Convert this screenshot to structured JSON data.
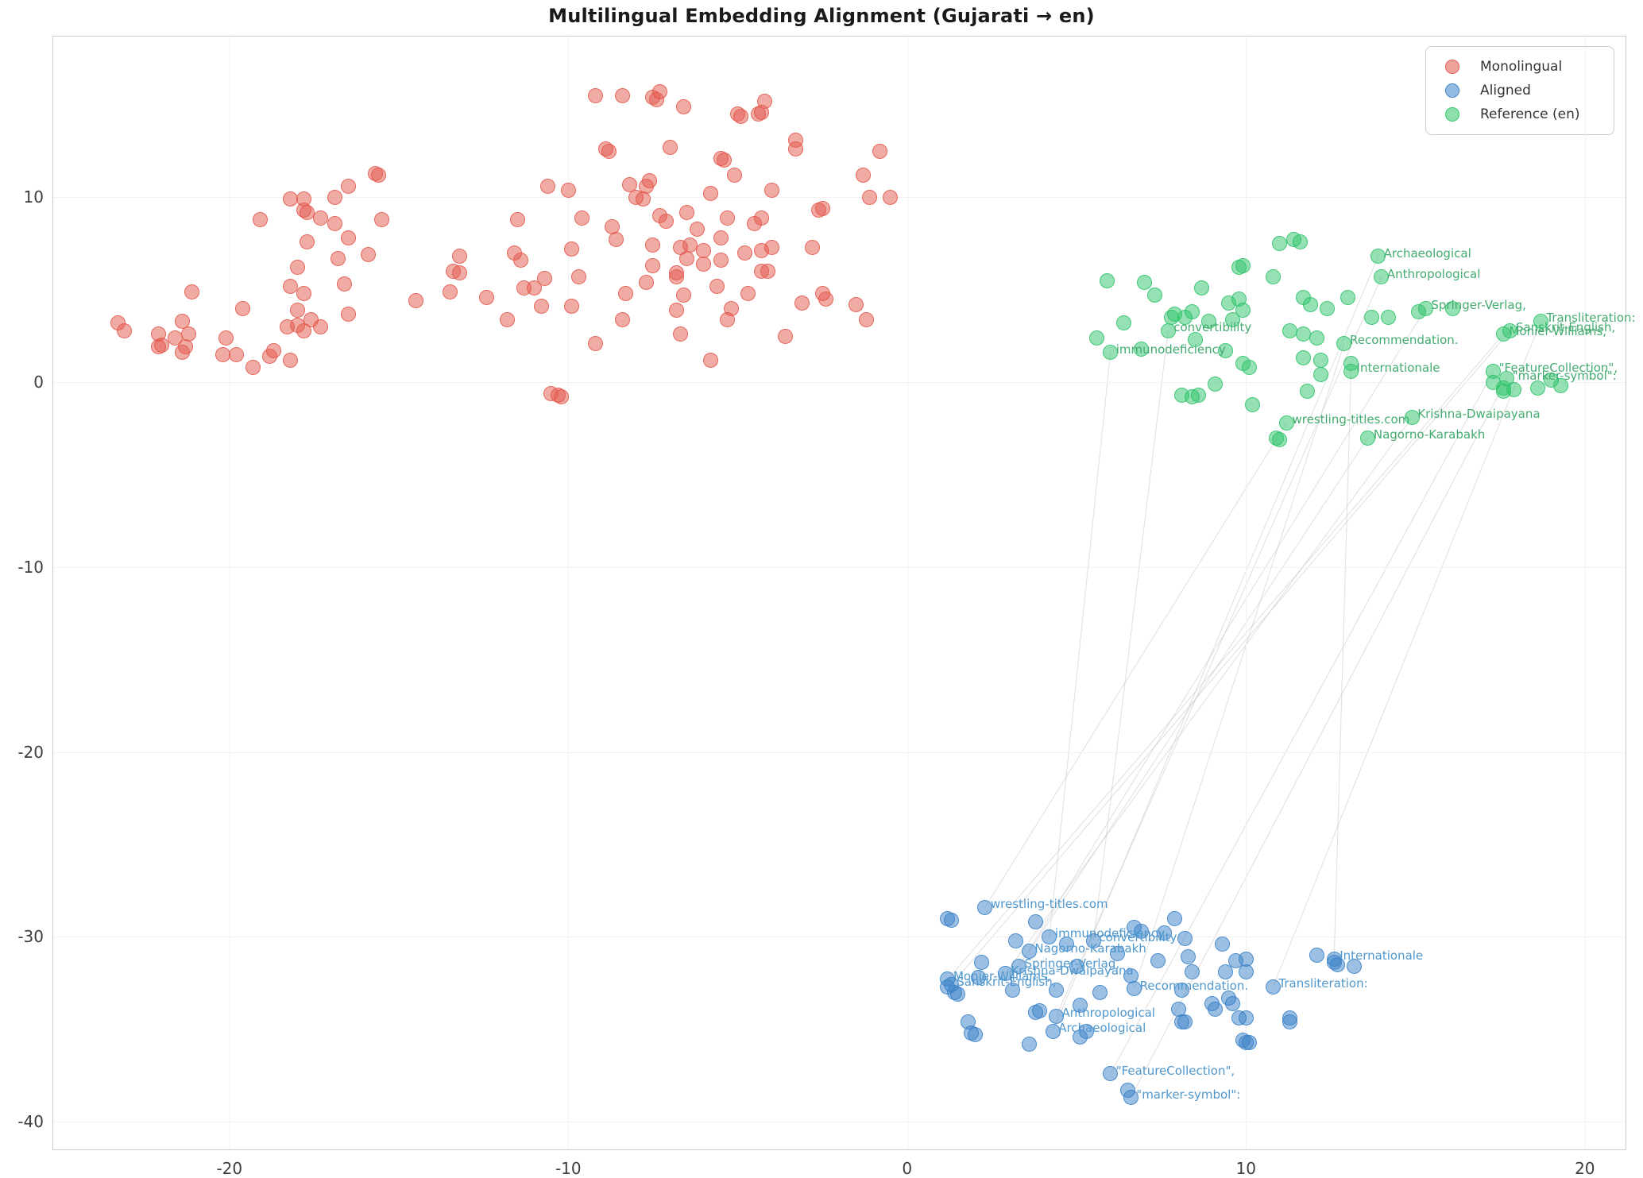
{
  "colors": {
    "monolingual": "#e4584c",
    "aligned": "#3a82c8",
    "reference": "#2ec36a",
    "aligned_label_text": "#4f97cd",
    "reference_label_text": "#44ab70",
    "connector": "#c9c9c9",
    "grid": "#f2f2f2",
    "spine": "#cdcdcd",
    "tick_text": "#3d3d3d"
  },
  "legend": {
    "items": [
      {
        "key": "monolingual",
        "label": "Monolingual"
      },
      {
        "key": "aligned",
        "label": "Aligned"
      },
      {
        "key": "reference",
        "label": "Reference (en)"
      }
    ]
  },
  "chart_data": {
    "type": "scatter",
    "title": "Multilingual Embedding Alignment (Gujarati → en)",
    "xlabel": "",
    "ylabel": "",
    "xlim": [
      -25.2,
      21.2
    ],
    "ylim": [
      -41.5,
      18.7
    ],
    "xticks": [
      -20,
      -10,
      0,
      10,
      20
    ],
    "yticks": [
      10,
      0,
      -10,
      -20,
      -30,
      -40
    ],
    "grid": true,
    "legend_position": "upper right",
    "series": [
      {
        "name": "Monolingual",
        "key": "monolingual",
        "points": [
          [
            -23.3,
            3.2
          ],
          [
            -23.1,
            2.8
          ],
          [
            -22.1,
            2.6
          ],
          [
            -22.1,
            1.9
          ],
          [
            -22.0,
            2.0
          ],
          [
            -21.6,
            2.4
          ],
          [
            -21.4,
            3.3
          ],
          [
            -21.4,
            1.6
          ],
          [
            -21.2,
            2.6
          ],
          [
            -21.3,
            1.9
          ],
          [
            -21.1,
            4.9
          ],
          [
            -20.2,
            1.5
          ],
          [
            -20.1,
            2.4
          ],
          [
            -19.8,
            1.5
          ],
          [
            -19.6,
            4.0
          ],
          [
            -19.3,
            0.8
          ],
          [
            -19.1,
            8.8
          ],
          [
            -18.8,
            1.4
          ],
          [
            -18.7,
            1.7
          ],
          [
            -18.2,
            9.9
          ],
          [
            -18.2,
            5.2
          ],
          [
            -18.3,
            3.0
          ],
          [
            -18.2,
            1.2
          ],
          [
            -18.0,
            3.1
          ],
          [
            -18.0,
            6.2
          ],
          [
            -18.0,
            3.9
          ],
          [
            -17.8,
            2.8
          ],
          [
            -17.8,
            4.8
          ],
          [
            -17.8,
            9.9
          ],
          [
            -17.7,
            9.2
          ],
          [
            -17.8,
            9.3
          ],
          [
            -17.7,
            7.6
          ],
          [
            -17.6,
            3.4
          ],
          [
            -17.3,
            3.0
          ],
          [
            -17.3,
            8.9
          ],
          [
            -16.9,
            10.0
          ],
          [
            -16.9,
            8.6
          ],
          [
            -16.8,
            6.7
          ],
          [
            -16.6,
            5.3
          ],
          [
            -16.5,
            10.6
          ],
          [
            -16.5,
            7.8
          ],
          [
            -16.5,
            3.7
          ],
          [
            -15.9,
            6.9
          ],
          [
            -15.6,
            11.2
          ],
          [
            -15.7,
            11.3
          ],
          [
            -15.5,
            8.8
          ],
          [
            -14.5,
            4.4
          ],
          [
            -13.4,
            6.0
          ],
          [
            -13.2,
            6.8
          ],
          [
            -9.2,
            15.5
          ],
          [
            -8.4,
            15.5
          ],
          [
            -7.4,
            15.3
          ],
          [
            -7.5,
            15.4
          ],
          [
            -7.3,
            15.7
          ],
          [
            -6.6,
            14.9
          ],
          [
            -5.0,
            14.5
          ],
          [
            -4.3,
            14.6
          ],
          [
            -4.4,
            14.5
          ],
          [
            -4.2,
            15.2
          ],
          [
            -4.9,
            14.4
          ],
          [
            -3.3,
            13.1
          ],
          [
            -8.8,
            12.5
          ],
          [
            -8.9,
            12.6
          ],
          [
            -7.0,
            12.7
          ],
          [
            -5.4,
            12.0
          ],
          [
            -5.5,
            12.1
          ],
          [
            -5.1,
            11.2
          ],
          [
            -3.3,
            12.6
          ],
          [
            -0.8,
            12.5
          ],
          [
            -1.3,
            11.2
          ],
          [
            -10.6,
            10.6
          ],
          [
            -10.0,
            10.4
          ],
          [
            -8.2,
            10.7
          ],
          [
            -7.7,
            10.6
          ],
          [
            -7.6,
            10.9
          ],
          [
            -8.0,
            10.0
          ],
          [
            -7.8,
            9.9
          ],
          [
            -5.8,
            10.2
          ],
          [
            -4.0,
            10.4
          ],
          [
            -2.6,
            9.3
          ],
          [
            -2.5,
            9.4
          ],
          [
            -1.1,
            10.0
          ],
          [
            -0.5,
            10.0
          ],
          [
            -11.5,
            8.8
          ],
          [
            -9.6,
            8.9
          ],
          [
            -8.7,
            8.4
          ],
          [
            -7.3,
            9.0
          ],
          [
            -7.1,
            8.7
          ],
          [
            -6.5,
            9.2
          ],
          [
            -5.3,
            8.9
          ],
          [
            -4.5,
            8.6
          ],
          [
            -4.3,
            8.9
          ],
          [
            -6.2,
            8.3
          ],
          [
            -5.5,
            7.8
          ],
          [
            -8.6,
            7.7
          ],
          [
            -9.9,
            7.2
          ],
          [
            -11.6,
            7.0
          ],
          [
            -11.4,
            6.6
          ],
          [
            -7.5,
            7.4
          ],
          [
            -6.7,
            7.3
          ],
          [
            -6.4,
            7.4
          ],
          [
            -6.0,
            7.1
          ],
          [
            -6.5,
            6.7
          ],
          [
            -6.0,
            6.4
          ],
          [
            -5.5,
            6.6
          ],
          [
            -4.8,
            7.0
          ],
          [
            -4.3,
            7.1
          ],
          [
            -4.0,
            7.3
          ],
          [
            -2.8,
            7.3
          ],
          [
            -4.1,
            6.0
          ],
          [
            -4.3,
            6.0
          ],
          [
            -13.2,
            5.9
          ],
          [
            -13.5,
            4.9
          ],
          [
            -12.4,
            4.6
          ],
          [
            -11.3,
            5.1
          ],
          [
            -11.0,
            5.1
          ],
          [
            -10.7,
            5.6
          ],
          [
            -9.7,
            5.7
          ],
          [
            -10.8,
            4.1
          ],
          [
            -9.9,
            4.1
          ],
          [
            -11.8,
            3.4
          ],
          [
            -8.4,
            3.4
          ],
          [
            -8.3,
            4.8
          ],
          [
            -7.7,
            5.4
          ],
          [
            -7.5,
            6.3
          ],
          [
            -6.8,
            5.7
          ],
          [
            -6.8,
            5.9
          ],
          [
            -6.6,
            4.7
          ],
          [
            -6.8,
            3.9
          ],
          [
            -5.6,
            5.2
          ],
          [
            -5.2,
            4.0
          ],
          [
            -5.3,
            3.4
          ],
          [
            -4.7,
            4.8
          ],
          [
            -3.1,
            4.3
          ],
          [
            -2.5,
            4.8
          ],
          [
            -2.4,
            4.5
          ],
          [
            -1.5,
            4.2
          ],
          [
            -1.2,
            3.4
          ],
          [
            -3.6,
            2.5
          ],
          [
            -6.7,
            2.6
          ],
          [
            -9.2,
            2.1
          ],
          [
            -5.8,
            1.2
          ],
          [
            -10.5,
            -0.6
          ],
          [
            -10.3,
            -0.7
          ],
          [
            -10.2,
            -0.8
          ]
        ]
      },
      {
        "name": "Aligned",
        "key": "aligned",
        "points": [
          [
            1.2,
            -29.0
          ],
          [
            1.3,
            -29.1
          ],
          [
            3.8,
            -29.2
          ],
          [
            3.2,
            -30.2
          ],
          [
            4.7,
            -30.4
          ],
          [
            6.7,
            -29.5
          ],
          [
            6.9,
            -29.7
          ],
          [
            7.6,
            -29.8
          ],
          [
            7.9,
            -29.0
          ],
          [
            8.2,
            -30.1
          ],
          [
            9.3,
            -30.4
          ],
          [
            10.0,
            -31.2
          ],
          [
            9.7,
            -31.3
          ],
          [
            8.3,
            -31.1
          ],
          [
            9.4,
            -31.9
          ],
          [
            8.4,
            -31.9
          ],
          [
            7.4,
            -31.3
          ],
          [
            6.2,
            -30.9
          ],
          [
            5.0,
            -31.6
          ],
          [
            2.2,
            -31.4
          ],
          [
            2.1,
            -32.2
          ],
          [
            1.4,
            -33.0
          ],
          [
            1.5,
            -33.1
          ],
          [
            1.2,
            -32.7
          ],
          [
            3.1,
            -32.9
          ],
          [
            4.4,
            -32.9
          ],
          [
            5.7,
            -33.0
          ],
          [
            6.6,
            -32.1
          ],
          [
            8.1,
            -32.9
          ],
          [
            9.6,
            -33.6
          ],
          [
            9.1,
            -33.9
          ],
          [
            10.0,
            -34.4
          ],
          [
            3.8,
            -34.1
          ],
          [
            1.8,
            -34.6
          ],
          [
            1.9,
            -35.2
          ],
          [
            2.0,
            -35.3
          ],
          [
            3.6,
            -35.8
          ],
          [
            3.9,
            -34.0
          ],
          [
            5.1,
            -33.7
          ],
          [
            5.1,
            -35.4
          ],
          [
            5.3,
            -35.1
          ],
          [
            8.0,
            -33.9
          ],
          [
            8.1,
            -34.6
          ],
          [
            8.2,
            -34.6
          ],
          [
            9.0,
            -33.6
          ],
          [
            9.5,
            -33.3
          ],
          [
            9.8,
            -34.4
          ],
          [
            9.9,
            -35.6
          ],
          [
            10.0,
            -35.7
          ],
          [
            10.1,
            -35.7
          ],
          [
            11.3,
            -34.4
          ],
          [
            6.5,
            -38.3
          ],
          [
            12.1,
            -31.0
          ],
          [
            12.6,
            -31.4
          ],
          [
            12.7,
            -31.5
          ],
          [
            13.2,
            -31.6
          ],
          [
            11.3,
            -34.6
          ],
          [
            10.0,
            -31.9
          ]
        ]
      },
      {
        "name": "Reference (en)",
        "key": "reference",
        "points": [
          [
            11.0,
            7.5
          ],
          [
            11.4,
            7.7
          ],
          [
            11.6,
            7.6
          ],
          [
            9.9,
            6.3
          ],
          [
            9.8,
            6.2
          ],
          [
            10.8,
            5.7
          ],
          [
            5.9,
            5.5
          ],
          [
            7.0,
            5.4
          ],
          [
            7.3,
            4.7
          ],
          [
            8.7,
            5.1
          ],
          [
            9.5,
            4.3
          ],
          [
            9.8,
            4.5
          ],
          [
            9.9,
            3.9
          ],
          [
            7.9,
            3.7
          ],
          [
            7.8,
            3.5
          ],
          [
            8.2,
            3.5
          ],
          [
            8.4,
            3.8
          ],
          [
            8.9,
            3.3
          ],
          [
            9.6,
            3.4
          ],
          [
            6.4,
            3.2
          ],
          [
            5.6,
            2.4
          ],
          [
            6.9,
            1.8
          ],
          [
            8.5,
            2.3
          ],
          [
            9.4,
            1.7
          ],
          [
            9.9,
            1.0
          ],
          [
            10.1,
            0.8
          ],
          [
            11.3,
            2.8
          ],
          [
            11.7,
            4.6
          ],
          [
            11.9,
            4.2
          ],
          [
            12.4,
            4.0
          ],
          [
            13.0,
            4.6
          ],
          [
            11.7,
            2.6
          ],
          [
            12.1,
            2.4
          ],
          [
            12.2,
            1.2
          ],
          [
            11.7,
            1.3
          ],
          [
            13.7,
            3.5
          ],
          [
            14.2,
            3.5
          ],
          [
            15.1,
            3.8
          ],
          [
            13.1,
            1.0
          ],
          [
            12.2,
            0.4
          ],
          [
            11.8,
            -0.5
          ],
          [
            10.9,
            -3.0
          ],
          [
            11.0,
            -3.1
          ],
          [
            17.6,
            -0.3
          ],
          [
            17.9,
            -0.4
          ],
          [
            18.6,
            -0.3
          ],
          [
            17.3,
            0.0
          ],
          [
            17.6,
            -0.5
          ],
          [
            19.0,
            0.1
          ],
          [
            19.3,
            -0.2
          ],
          [
            8.1,
            -0.7
          ],
          [
            8.4,
            -0.8
          ],
          [
            8.6,
            -0.7
          ],
          [
            9.1,
            -0.1
          ],
          [
            10.2,
            -1.2
          ],
          [
            16.1,
            4.0
          ]
        ]
      }
    ],
    "alignment_pairs": [
      {
        "label": "wrestling-titles.com",
        "aligned": [
          2.3,
          -28.4
        ],
        "reference": [
          11.2,
          -2.2
        ]
      },
      {
        "label": "immunodeficiency",
        "aligned": [
          4.2,
          -30.0
        ],
        "reference": [
          6.0,
          1.6
        ]
      },
      {
        "label": "convertibility",
        "aligned": [
          5.5,
          -30.2
        ],
        "reference": [
          7.7,
          2.8
        ]
      },
      {
        "label": "Nagorno-Karabakh",
        "aligned": [
          3.6,
          -30.8
        ],
        "reference": [
          13.6,
          -3.0
        ]
      },
      {
        "label": "Springer-Verlag,",
        "aligned": [
          3.3,
          -31.6
        ],
        "reference": [
          15.3,
          4.0
        ]
      },
      {
        "label": "Krishna-Dwaipayana",
        "aligned": [
          2.9,
          -32.0
        ],
        "reference": [
          14.9,
          -1.9
        ]
      },
      {
        "label": "Monier-Williams,",
        "aligned": [
          1.2,
          -32.3
        ],
        "reference": [
          17.6,
          2.6
        ]
      },
      {
        "label": "Sanskrit-English,",
        "aligned": [
          1.3,
          -32.6
        ],
        "reference": [
          17.8,
          2.8
        ]
      },
      {
        "label": "Recommendation.",
        "aligned": [
          6.7,
          -32.8
        ],
        "reference": [
          12.9,
          2.1
        ]
      },
      {
        "label": "Anthropological",
        "aligned": [
          4.4,
          -34.3
        ],
        "reference": [
          14.0,
          5.7
        ]
      },
      {
        "label": "Archaeological",
        "aligned": [
          4.3,
          -35.1
        ],
        "reference": [
          13.9,
          6.8
        ]
      },
      {
        "label": "\"FeatureCollection\",",
        "aligned": [
          6.0,
          -37.4
        ],
        "reference": [
          17.3,
          0.6
        ]
      },
      {
        "label": "\"marker-symbol\":",
        "aligned": [
          6.6,
          -38.7
        ],
        "reference": [
          17.7,
          0.2
        ]
      },
      {
        "label": "Transliteration:",
        "aligned": [
          10.8,
          -32.7
        ],
        "reference": [
          18.7,
          3.3
        ]
      },
      {
        "label": "Internationale",
        "aligned": [
          12.6,
          -31.2
        ],
        "reference": [
          13.1,
          0.6
        ]
      }
    ]
  }
}
